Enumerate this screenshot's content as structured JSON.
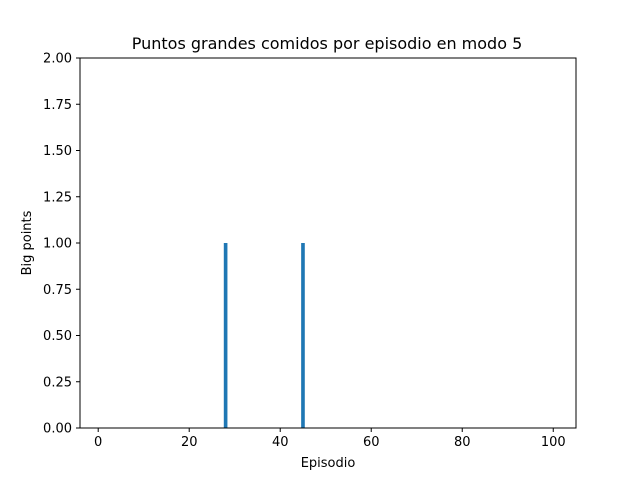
{
  "chart_data": {
    "type": "bar",
    "title": "Puntos grandes comidos por episodio en modo 5",
    "xlabel": "Episodio",
    "ylabel": "Big points",
    "xlim": [
      -4,
      105
    ],
    "ylim": [
      0,
      2
    ],
    "x_ticks": [
      0,
      20,
      40,
      60,
      80,
      100
    ],
    "y_ticks": [
      0,
      0.25,
      0.5,
      0.75,
      1.0,
      1.25,
      1.5,
      1.75,
      2.0
    ],
    "y_tick_labels": [
      "0.00",
      "0.25",
      "0.50",
      "0.75",
      "1.00",
      "1.25",
      "1.50",
      "1.75",
      "2.00"
    ],
    "x_tick_labels": [
      "0",
      "20",
      "40",
      "60",
      "80",
      "100"
    ],
    "bars": [
      {
        "x": 28,
        "value": 1
      },
      {
        "x": 45,
        "value": 1
      }
    ],
    "bar_color": "#1f77b4",
    "grid": false
  }
}
